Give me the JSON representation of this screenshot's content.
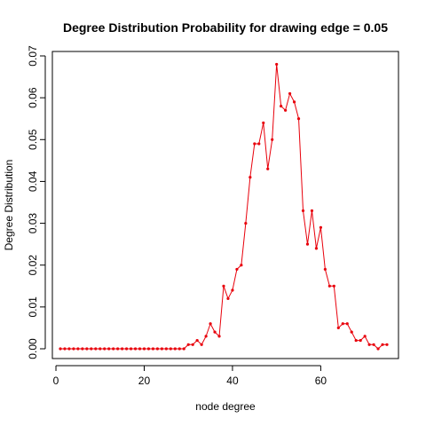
{
  "chart_data": {
    "type": "line",
    "title": "Degree Distribution Probability for drawing edge =  0.05",
    "xlabel": "node degree",
    "ylabel": "Degree Distribution",
    "xlim": [
      1,
      75
    ],
    "ylim": [
      0,
      0.07
    ],
    "x_ticks": [
      0,
      20,
      40,
      60
    ],
    "x_tick_labels": [
      "0",
      "20",
      "40",
      "60"
    ],
    "y_ticks": [
      0,
      0.01,
      0.02,
      0.03,
      0.04,
      0.05,
      0.06,
      0.07
    ],
    "y_tick_labels": [
      "0.00",
      "0.01",
      "0.02",
      "0.03",
      "0.04",
      "0.05",
      "0.06",
      "0.07"
    ],
    "grid": false,
    "series_color": "#e8000b",
    "series": [
      {
        "x": [
          1,
          2,
          3,
          4,
          5,
          6,
          7,
          8,
          9,
          10,
          11,
          12,
          13,
          14,
          15,
          16,
          17,
          18,
          19,
          20,
          21,
          22,
          23,
          24,
          25,
          26,
          27,
          28,
          29,
          30,
          31,
          32,
          33,
          34,
          35,
          36,
          37,
          38,
          39,
          40,
          41,
          42,
          43,
          44,
          45,
          46,
          47,
          48,
          49,
          50,
          51,
          52,
          53,
          54,
          55,
          56,
          57,
          58,
          59,
          60,
          61,
          62,
          63,
          64,
          65,
          66,
          67,
          68,
          69,
          70,
          71,
          72,
          73,
          74,
          75
        ],
        "values": [
          0,
          0,
          0,
          0,
          0,
          0,
          0,
          0,
          0,
          0,
          0,
          0,
          0,
          0,
          0,
          0,
          0,
          0,
          0,
          0,
          0,
          0,
          0,
          0,
          0,
          0,
          0,
          0,
          0,
          0.001,
          0.001,
          0.002,
          0.001,
          0.003,
          0.006,
          0.004,
          0.003,
          0.015,
          0.012,
          0.014,
          0.019,
          0.02,
          0.03,
          0.041,
          0.049,
          0.049,
          0.054,
          0.043,
          0.05,
          0.068,
          0.058,
          0.057,
          0.061,
          0.059,
          0.055,
          0.033,
          0.025,
          0.033,
          0.024,
          0.029,
          0.019,
          0.015,
          0.015,
          0.005,
          0.006,
          0.006,
          0.004,
          0.002,
          0.002,
          0.003,
          0.001,
          0.001,
          0,
          0.001,
          0.001
        ]
      }
    ]
  }
}
